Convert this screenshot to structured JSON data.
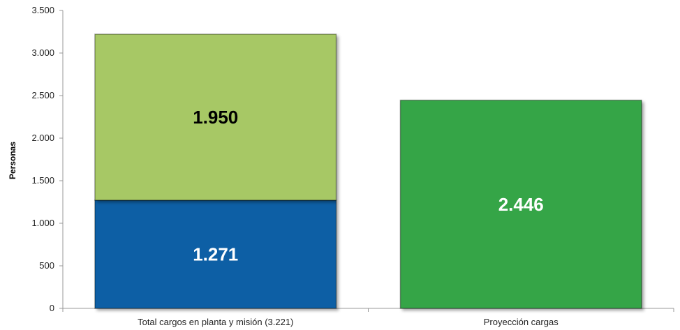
{
  "chart_data": {
    "type": "bar",
    "stacked": true,
    "categories": [
      "Total cargos en planta y misión (3.221)",
      "Proyección cargas"
    ],
    "series": [
      {
        "values": [
          1271,
          2446
        ],
        "colors": [
          "#0a5fa5",
          "#34a547"
        ],
        "label_colors": [
          "#ffffff",
          "#ffffff"
        ]
      },
      {
        "values": [
          1950,
          null
        ],
        "colors": [
          "#a7c865",
          null
        ],
        "label_colors": [
          "#000000",
          null
        ]
      }
    ],
    "data_labels": [
      [
        "1.271",
        "2.446"
      ],
      [
        "1.950",
        null
      ]
    ],
    "ylabel": "Personas",
    "ylim": [
      0,
      3500
    ],
    "yticks": [
      0,
      500,
      1000,
      1500,
      2000,
      2500,
      3000,
      3500
    ],
    "ytick_labels": [
      "0",
      "500",
      "1.000",
      "1.500",
      "2.000",
      "2.500",
      "3.000",
      "3.500"
    ],
    "grid": false,
    "legend": "none"
  }
}
